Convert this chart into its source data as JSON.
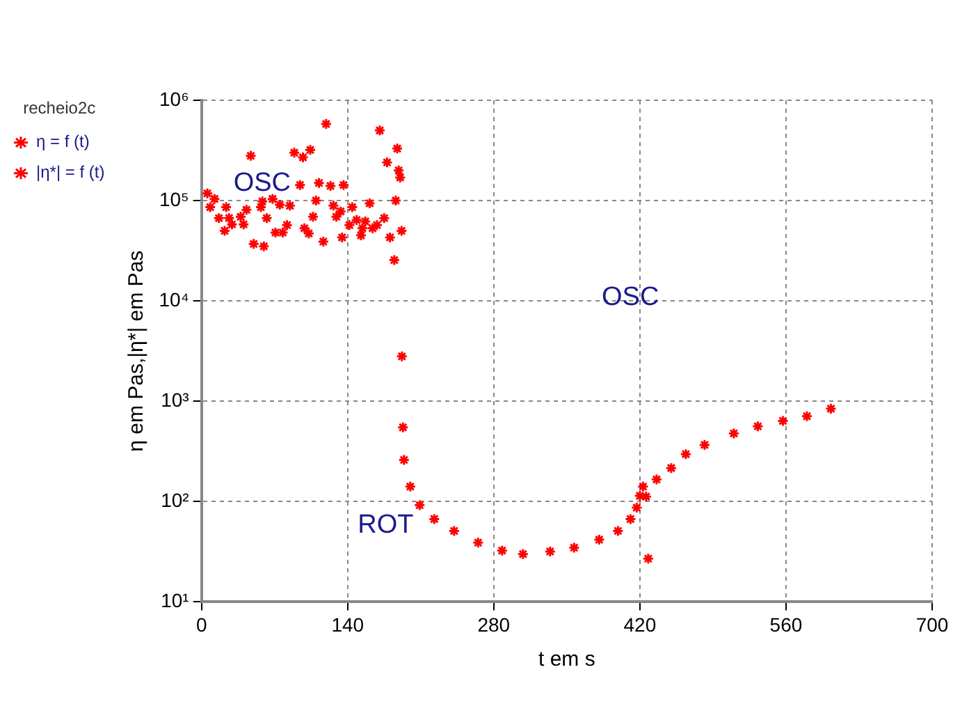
{
  "chart_data": {
    "type": "scatter",
    "xlabel": "t em s",
    "ylabel": "η em Pas,|η*| em Pas",
    "legend_title": "recheio2c",
    "legend": "top left",
    "grid": true,
    "log": "y",
    "marker": "cross",
    "xlim": [
      0,
      700
    ],
    "xticks": [
      0,
      140,
      280,
      420,
      560,
      700
    ],
    "ylim": [
      10,
      1000000
    ],
    "yticks": [
      {
        "value": 10,
        "label": "10¹"
      },
      {
        "value": 100,
        "label": "10²"
      },
      {
        "value": 1000,
        "label": "10³"
      },
      {
        "value": 10000,
        "label": "10⁴"
      },
      {
        "value": 100000,
        "label": "10⁵"
      },
      {
        "value": 1000000,
        "label": "10⁶"
      }
    ],
    "annotations": [
      "OSC",
      "OSC",
      "ROT"
    ],
    "series": [
      {
        "name": "η = f (t)",
        "color": "#ff0000",
        "x": [
          192,
          193,
          194,
          200,
          209,
          223,
          242,
          265,
          288,
          308,
          334,
          357,
          381,
          399,
          411,
          417,
          420
        ],
        "values": [
          2800,
          550,
          260,
          141,
          92,
          67,
          51,
          39,
          32.5,
          30,
          31.8,
          34.7,
          41.7,
          51,
          67,
          87,
          114
        ]
      },
      {
        "name": "|η*| = f (t)",
        "color": "#ff0000",
        "x": [
          5.6,
          12.5,
          8.3,
          23.6,
          16.7,
          26.4,
          22.2,
          37.5,
          40.3,
          29.2,
          43.1,
          47.2,
          56.9,
          58.3,
          68.1,
          62.5,
          50,
          59.7,
          70.8,
          77.8,
          81.9,
          75,
          84.7,
          88.9,
          97.2,
          104.2,
          94.4,
          98.6,
          102.8,
          106.9,
          109.7,
          112.5,
          119.4,
          116.7,
          123.6,
          126.4,
          129.2,
          133.3,
          134.7,
          136.1,
          141.7,
          144.4,
          148.6,
          152.8,
          154.2,
          156.9,
          161.1,
          163.9,
          168.1,
          170.8,
          175,
          177.8,
          180.6,
          186.1,
          187.5,
          188.9,
          190.3,
          191.7,
          184.7,
          423,
          426,
          428,
          436,
          450,
          464,
          482,
          510,
          533,
          557,
          580,
          603
        ],
        "values": [
          118000,
          104000,
          86000,
          86000,
          67000,
          67000,
          50000,
          69000,
          58000,
          58000,
          81000,
          280000,
          86000,
          98000,
          104000,
          67000,
          37000,
          35000,
          48000,
          48000,
          57000,
          91000,
          89000,
          300000,
          270000,
          320000,
          143000,
          53000,
          47000,
          69000,
          100000,
          150000,
          580000,
          39000,
          140000,
          89000,
          69000,
          78000,
          43000,
          143000,
          57000,
          86000,
          64000,
          45000,
          53000,
          62000,
          94000,
          53000,
          57000,
          500000,
          67000,
          240000,
          43000,
          100000,
          330000,
          200000,
          170000,
          50000,
          25500,
          141,
          112,
          27,
          166,
          216,
          297,
          367,
          478,
          562,
          637,
          708,
          843
        ]
      }
    ]
  }
}
